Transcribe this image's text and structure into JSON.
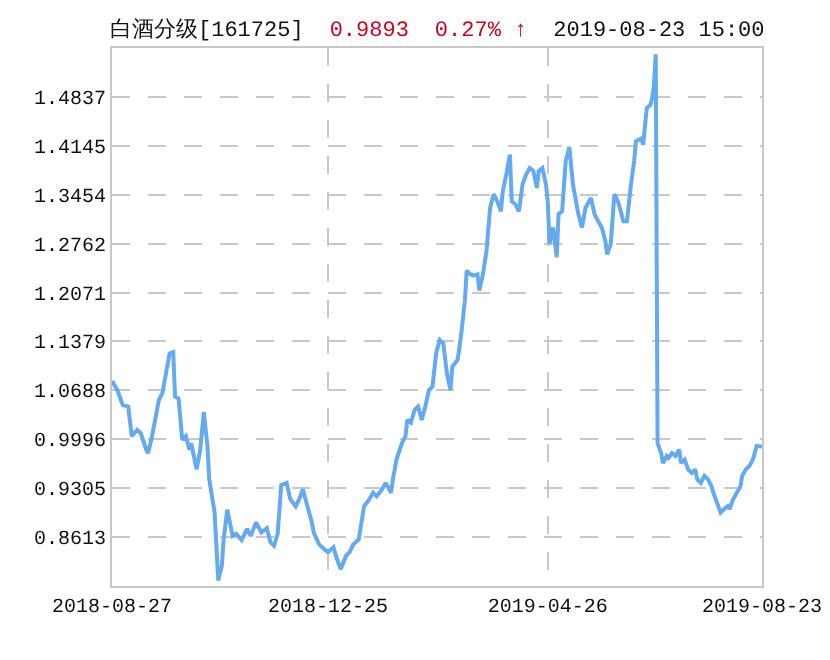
{
  "chart_data": {
    "type": "line",
    "title": "白酒分级[161725]",
    "annotations": [
      "0.9893",
      "0.27% ↑",
      "2019-08-23 15:00"
    ],
    "x": [
      "2018-08-27",
      "2018-08-30",
      "2018-09-02",
      "2018-09-05",
      "2018-09-07",
      "2018-09-10",
      "2018-09-12",
      "2018-09-15",
      "2018-09-16",
      "2018-09-18",
      "2018-09-21",
      "2018-09-22",
      "2018-09-24",
      "2018-09-26",
      "2018-09-28",
      "2018-09-30",
      "2018-10-01",
      "2018-10-03",
      "2018-10-05",
      "2018-10-07",
      "2018-10-09",
      "2018-10-10",
      "2018-10-13",
      "2018-10-15",
      "2018-10-17",
      "2018-10-19",
      "2018-10-20",
      "2018-10-23",
      "2018-10-25",
      "2018-10-27",
      "2018-10-28",
      "2018-10-30",
      "2018-11-02",
      "2018-11-04",
      "2018-11-07",
      "2018-11-10",
      "2018-11-12",
      "2018-11-15",
      "2018-11-18",
      "2018-11-21",
      "2018-11-23",
      "2018-11-25",
      "2018-11-27",
      "2018-11-29",
      "2018-12-02",
      "2018-12-04",
      "2018-12-07",
      "2018-12-09",
      "2018-12-11",
      "2018-12-13",
      "2018-12-16",
      "2018-12-17",
      "2018-12-20",
      "2018-12-23",
      "2018-12-25",
      "2018-12-28",
      "2018-12-30",
      "2019-01-01",
      "2019-01-04",
      "2019-01-06",
      "2019-01-08",
      "2019-01-11",
      "2019-01-13",
      "2019-01-14",
      "2019-01-17",
      "2019-01-19",
      "2019-01-21",
      "2019-01-24",
      "2019-01-26",
      "2019-01-29",
      "2019-01-30",
      "2019-02-01",
      "2019-02-04",
      "2019-02-06",
      "2019-02-07",
      "2019-02-09",
      "2019-02-11",
      "2019-02-13",
      "2019-02-15",
      "2019-02-17",
      "2019-02-19",
      "2019-02-21",
      "2019-02-23",
      "2019-02-25",
      "2019-02-27",
      "2019-03-01",
      "2019-03-03",
      "2019-03-04",
      "2019-03-07",
      "2019-03-09",
      "2019-03-11",
      "2019-03-12",
      "2019-03-14",
      "2019-03-16",
      "2019-03-18",
      "2019-03-19",
      "2019-03-21",
      "2019-03-23",
      "2019-03-25",
      "2019-03-27",
      "2019-03-29",
      "2019-03-31",
      "2019-04-01",
      "2019-04-03",
      "2019-04-05",
      "2019-04-06",
      "2019-04-08",
      "2019-04-10",
      "2019-04-12",
      "2019-04-14",
      "2019-04-16",
      "2019-04-18",
      "2019-04-20",
      "2019-04-21",
      "2019-04-23",
      "2019-04-25",
      "2019-04-26",
      "2019-04-27",
      "2019-04-29",
      "2019-05-01",
      "2019-05-02",
      "2019-05-04",
      "2019-05-06",
      "2019-05-08",
      "2019-05-10",
      "2019-05-11",
      "2019-05-13",
      "2019-05-15",
      "2019-05-17",
      "2019-05-19",
      "2019-05-20",
      "2019-05-22",
      "2019-05-24",
      "2019-05-26",
      "2019-05-28",
      "2019-05-29",
      "2019-05-31",
      "2019-06-02",
      "2019-06-04",
      "2019-06-05",
      "2019-06-07",
      "2019-06-09",
      "2019-06-11",
      "2019-06-13",
      "2019-06-14",
      "2019-06-17",
      "2019-06-18",
      "2019-06-20",
      "2019-06-22",
      "2019-06-23",
      "2019-06-24",
      "2019-06-25",
      "2019-06-26",
      "2019-06-28",
      "2019-06-29",
      "2019-07-01",
      "2019-07-02",
      "2019-07-04",
      "2019-07-06",
      "2019-07-08",
      "2019-07-09",
      "2019-07-11",
      "2019-07-13",
      "2019-07-15",
      "2019-07-17",
      "2019-07-18",
      "2019-07-20",
      "2019-07-22",
      "2019-07-24",
      "2019-07-26",
      "2019-07-27",
      "2019-07-29",
      "2019-07-31",
      "2019-08-02",
      "2019-08-04",
      "2019-08-05",
      "2019-08-07",
      "2019-08-09",
      "2019-08-11",
      "2019-08-12",
      "2019-08-14",
      "2019-08-16",
      "2019-08-18",
      "2019-08-20",
      "2019-08-23"
    ],
    "values": [
      1.082,
      1.069,
      1.048,
      1.046,
      1.004,
      1.013,
      1.008,
      0.985,
      0.98,
      1.001,
      1.041,
      1.055,
      1.065,
      1.093,
      1.121,
      1.123,
      1.06,
      1.057,
      0.999,
      1.004,
      0.985,
      0.994,
      0.957,
      0.985,
      1.038,
      0.99,
      0.943,
      0.896,
      0.8,
      0.821,
      0.858,
      0.9,
      0.863,
      0.866,
      0.857,
      0.873,
      0.863,
      0.882,
      0.868,
      0.874,
      0.854,
      0.849,
      0.866,
      0.935,
      0.938,
      0.915,
      0.905,
      0.915,
      0.929,
      0.91,
      0.882,
      0.868,
      0.851,
      0.844,
      0.84,
      0.847,
      0.83,
      0.816,
      0.835,
      0.84,
      0.851,
      0.858,
      0.889,
      0.905,
      0.915,
      0.924,
      0.919,
      0.929,
      0.938,
      0.924,
      0.943,
      0.971,
      0.994,
      1.004,
      1.027,
      1.023,
      1.041,
      1.046,
      1.027,
      1.046,
      1.069,
      1.074,
      1.121,
      1.14,
      1.135,
      1.093,
      1.069,
      1.102,
      1.112,
      1.149,
      1.196,
      1.238,
      1.233,
      1.231,
      1.233,
      1.21,
      1.233,
      1.266,
      1.327,
      1.346,
      1.336,
      1.322,
      1.35,
      1.374,
      1.402,
      1.336,
      1.332,
      1.322,
      1.36,
      1.374,
      1.383,
      1.379,
      1.355,
      1.379,
      1.383,
      1.36,
      1.336,
      1.276,
      1.299,
      1.257,
      1.318,
      1.322,
      1.393,
      1.413,
      1.36,
      1.346,
      1.318,
      1.299,
      1.327,
      1.336,
      1.341,
      1.318,
      1.308,
      1.299,
      1.28,
      1.261,
      1.276,
      1.346,
      1.336,
      1.327,
      1.308,
      1.308,
      1.355,
      1.393,
      1.421,
      1.425,
      1.416,
      1.468,
      1.472,
      1.482,
      1.5,
      1.544,
      0.994,
      0.98,
      0.966,
      0.976,
      0.973,
      0.98,
      0.976,
      0.985,
      0.966,
      0.971,
      0.957,
      0.952,
      0.957,
      0.943,
      0.938,
      0.948,
      0.943,
      0.933,
      0.924,
      0.91,
      0.896,
      0.901,
      0.905,
      0.901,
      0.915,
      0.924,
      0.933,
      0.948,
      0.957,
      0.962,
      0.971,
      0.99,
      0.9893
    ],
    "color": "#64aaf0",
    "line_style": "solid",
    "xlim": [
      "2018-08-27",
      "2019-08-23"
    ],
    "xticks": [
      "2018-08-27",
      "2018-12-25",
      "2019-04-26",
      "2019-08-23"
    ],
    "ylim": [
      0.7922,
      1.5528
    ],
    "yticks": [
      0.8613,
      0.9305,
      0.9996,
      1.0688,
      1.1379,
      1.2071,
      1.2762,
      1.3454,
      1.4145,
      1.4837
    ],
    "grid": true
  }
}
